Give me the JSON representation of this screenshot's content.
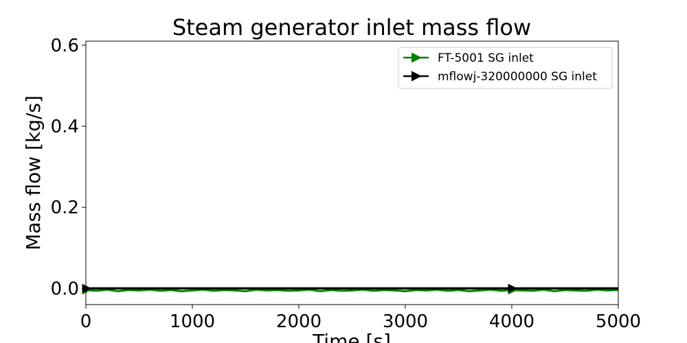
{
  "chart_data": {
    "type": "line",
    "title": "Steam generator inlet mass flow",
    "xlabel": "Time [s]",
    "ylabel": "Mass flow [kg/s]",
    "xlim": [
      0,
      5000
    ],
    "ylim": [
      -0.04,
      0.61
    ],
    "xticks": [
      0,
      1000,
      2000,
      3000,
      4000,
      5000
    ],
    "xtick_labels": [
      "0",
      "1000",
      "2000",
      "3000",
      "4000",
      "5000"
    ],
    "yticks": [
      0.0,
      0.2,
      0.4,
      0.6
    ],
    "ytick_labels": [
      "0.0",
      "0.2",
      "0.4",
      "0.6"
    ],
    "grid": false,
    "legend_position": "top-right",
    "series": [
      {
        "name": "FT-5001 SG inlet",
        "color": "#008000",
        "marker": "right-triangle",
        "x": [
          0,
          100,
          200,
          300,
          400,
          500,
          600,
          700,
          800,
          900,
          1000,
          1100,
          1200,
          1300,
          1400,
          1500,
          1600,
          1700,
          1800,
          1900,
          2000,
          2100,
          2200,
          2300,
          2400,
          2500,
          2600,
          2700,
          2800,
          2900,
          3000,
          3100,
          3200,
          3300,
          3400,
          3500,
          3600,
          3700,
          3800,
          3900,
          4000,
          4100,
          4200,
          4300,
          4400,
          4500,
          4600,
          4700,
          4800,
          4900,
          5000
        ],
        "y": [
          -0.004,
          -0.006,
          -0.003,
          -0.007,
          -0.004,
          -0.005,
          -0.003,
          -0.006,
          -0.004,
          -0.007,
          -0.005,
          -0.003,
          -0.006,
          -0.004,
          -0.005,
          -0.007,
          -0.003,
          -0.005,
          -0.004,
          -0.006,
          -0.005,
          -0.003,
          -0.007,
          -0.004,
          -0.006,
          -0.005,
          -0.003,
          -0.006,
          -0.004,
          -0.005,
          -0.007,
          -0.004,
          -0.005,
          -0.003,
          -0.006,
          -0.004,
          -0.007,
          -0.005,
          -0.003,
          -0.006,
          -0.004,
          -0.005,
          -0.006,
          -0.003,
          -0.007,
          -0.004,
          -0.005,
          -0.006,
          -0.003,
          -0.005,
          -0.004
        ]
      },
      {
        "name": "mflowj-320000000 SG inlet",
        "color": "#000000",
        "marker": "right-triangle",
        "x": [
          0,
          1000,
          2000,
          3000,
          4000,
          5000
        ],
        "y": [
          0.0,
          0.0,
          0.0,
          0.0,
          0.0,
          0.0
        ]
      }
    ]
  }
}
